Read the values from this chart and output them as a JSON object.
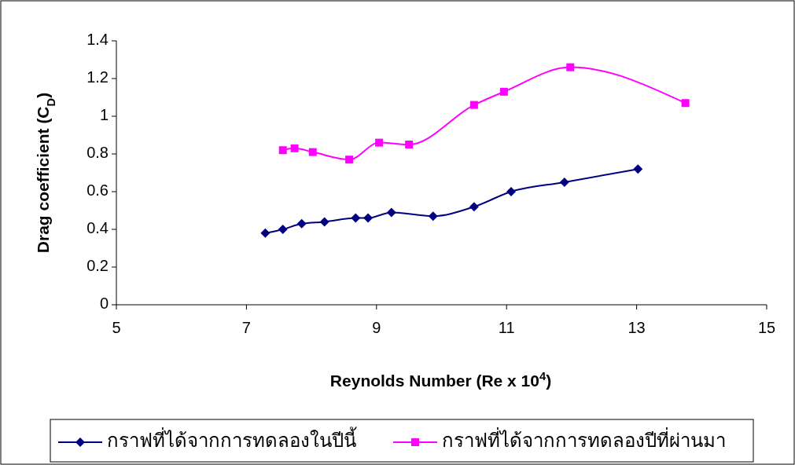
{
  "chart_data": {
    "type": "line",
    "xlabel": "Reynolds Number (Re x 10$^{4}$)",
    "ylabel": "Drag coefficient (C$_{D}$)",
    "xlim": [
      5,
      15
    ],
    "xticks": [
      5,
      7,
      9,
      11,
      13,
      15
    ],
    "ylim": [
      0,
      1.4
    ],
    "yticks": [
      0,
      0.2,
      0.4,
      0.6,
      0.8,
      1,
      1.2,
      1.4
    ],
    "grid": false,
    "legend": "bottom",
    "series": [
      {
        "name": "กราฟที่ได้จากการทดลองในปีนี้",
        "color": "#000080",
        "marker": "diamond",
        "x": [
          7.29,
          7.56,
          7.85,
          8.2,
          8.68,
          8.87,
          9.23,
          9.87,
          10.5,
          11.07,
          11.89,
          13.02
        ],
        "values": [
          0.38,
          0.4,
          0.43,
          0.44,
          0.46,
          0.46,
          0.49,
          0.47,
          0.52,
          0.6,
          0.65,
          0.72
        ]
      },
      {
        "name": "กราฟที่ได้จากการทดลองปีที่ผ่านมา",
        "color": "#ff00ff",
        "marker": "square",
        "x": [
          7.56,
          7.74,
          8.02,
          8.58,
          9.04,
          9.5,
          10.5,
          10.96,
          11.98,
          13.75
        ],
        "values": [
          0.82,
          0.83,
          0.81,
          0.77,
          0.86,
          0.85,
          1.06,
          1.13,
          1.26,
          1.07
        ]
      }
    ]
  }
}
